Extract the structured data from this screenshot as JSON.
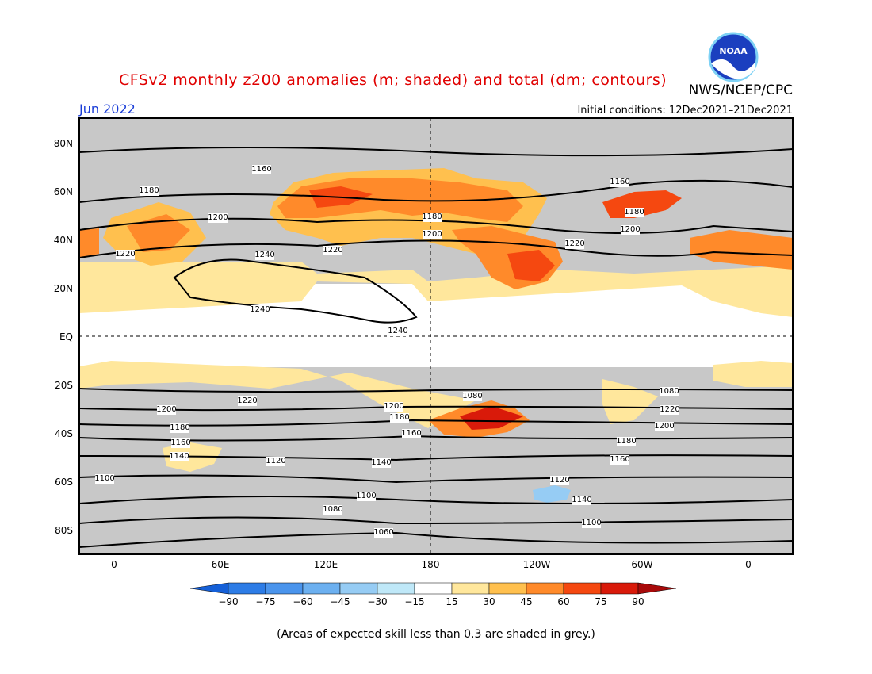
{
  "title": "CFSv2 monthly z200 anomalies (m; shaded) and total (dm; contours)",
  "agency": "NWS/NCEP/CPC",
  "month": "Jun 2022",
  "initial_conditions": "Initial conditions: 12Dec2021–21Dec2021",
  "footnote": "(Areas of expected skill less than 0.3 are shaded in grey.)",
  "lat_ticks": [
    "80N",
    "60N",
    "40N",
    "20N",
    "EQ",
    "20S",
    "40S",
    "60S",
    "80S"
  ],
  "lon_ticks": [
    "0",
    "60E",
    "120E",
    "180",
    "120W",
    "60W",
    "0"
  ],
  "colorbar_ticks": [
    "−90",
    "−75",
    "−60",
    "−45",
    "−30",
    "−15",
    "15",
    "30",
    "45",
    "60",
    "75",
    "90"
  ],
  "colorbar_colors": [
    "#1560d8",
    "#2d7ce6",
    "#4a94ec",
    "#6cb0f0",
    "#96ccf4",
    "#bfe8f8",
    "#ffffff",
    "#ffe79c",
    "#ffc04e",
    "#ff8a2a",
    "#f54810",
    "#d91a0a",
    "#a80a0a"
  ],
  "contour_labels": [
    "1160",
    "1180",
    "1200",
    "1220",
    "1240",
    "1160",
    "1180",
    "1200",
    "1220",
    "1240",
    "1180",
    "1200",
    "1220",
    "1200",
    "1180",
    "1160",
    "1140",
    "1120",
    "1100",
    "1080",
    "1060",
    "1220",
    "1200",
    "1180",
    "1160",
    "1140",
    "1120",
    "1100",
    "1080",
    "1220",
    "1200",
    "1180",
    "1160",
    "1140",
    "1100",
    "1080",
    "1060"
  ]
}
